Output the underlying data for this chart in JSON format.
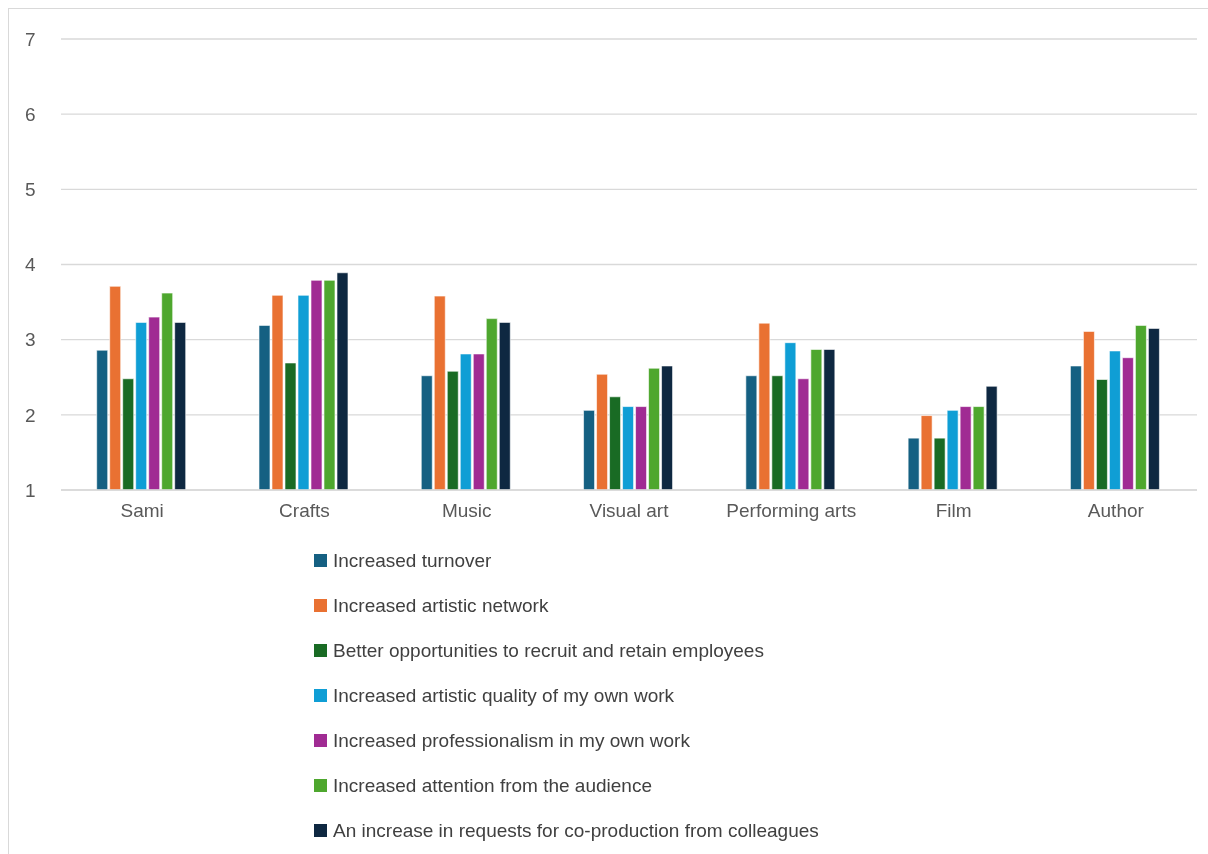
{
  "chart_data": {
    "type": "bar",
    "categories": [
      "Sami",
      "Crafts",
      "Music",
      "Visual art",
      "Performing arts",
      "Film",
      "Author"
    ],
    "series": [
      {
        "name": "Increased turnover",
        "color": "#156082",
        "values": [
          2.86,
          3.19,
          2.52,
          2.06,
          2.52,
          1.69,
          2.65
        ]
      },
      {
        "name": "Increased artistic network",
        "color": "#e97132",
        "values": [
          3.71,
          3.59,
          3.58,
          2.54,
          3.22,
          1.99,
          3.11
        ]
      },
      {
        "name": "Better opportunities to recruit and retain employees",
        "color": "#196b24",
        "values": [
          2.48,
          2.69,
          2.58,
          2.24,
          2.52,
          1.69,
          2.47
        ]
      },
      {
        "name": "Increased artistic quality of my own work",
        "color": "#0f9ed5",
        "values": [
          3.23,
          3.59,
          2.81,
          2.11,
          2.96,
          2.06,
          2.85
        ]
      },
      {
        "name": "Increased professionalism in my own work",
        "color": "#a02b93",
        "values": [
          3.3,
          3.79,
          2.81,
          2.11,
          2.48,
          2.11,
          2.76
        ]
      },
      {
        "name": "Increased attention from the audience",
        "color": "#4ea72e",
        "values": [
          3.62,
          3.79,
          3.28,
          2.62,
          2.87,
          2.11,
          3.19
        ]
      },
      {
        "name": "An increase in requests for co-production from colleagues",
        "color": "#0e2841",
        "values": [
          3.23,
          3.89,
          3.23,
          2.65,
          2.87,
          2.38,
          3.15
        ]
      }
    ],
    "ylim": [
      1,
      7
    ],
    "yticks": [
      1,
      2,
      3,
      4,
      5,
      6,
      7
    ],
    "grid": "y",
    "legend": "bottom"
  }
}
